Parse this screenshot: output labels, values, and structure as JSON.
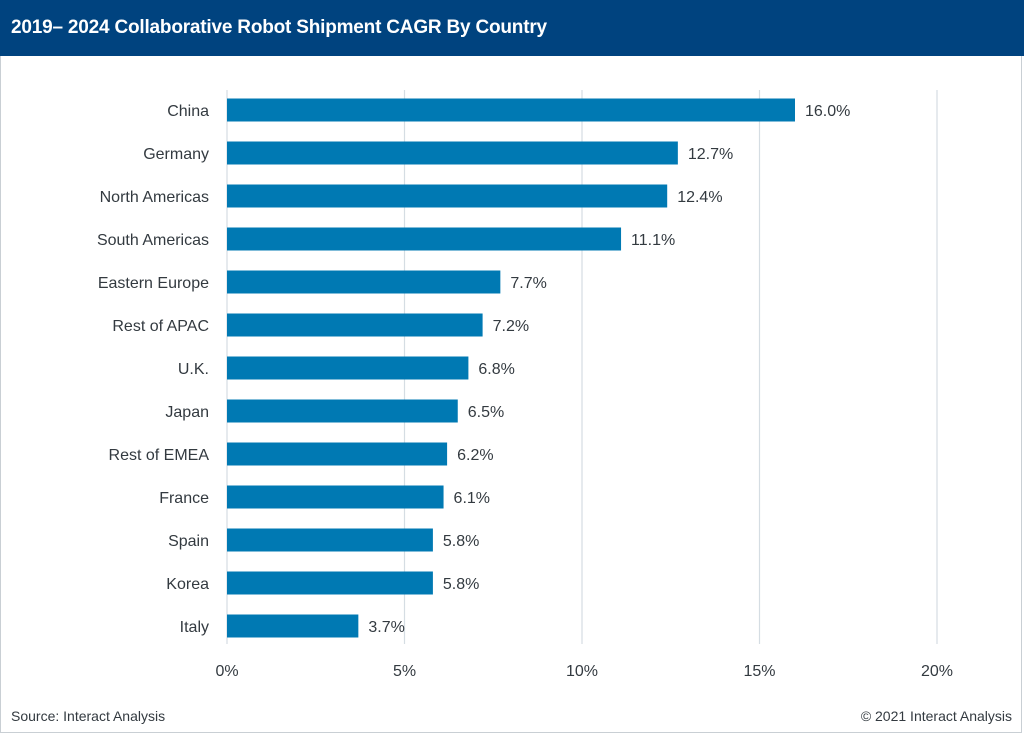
{
  "header": {
    "title": "2019– 2024 Collaborative Robot Shipment CAGR By Country"
  },
  "footer": {
    "source": "Source: Interact Analysis",
    "copyright": "© 2021 Interact Analysis"
  },
  "colors": {
    "header_bg": "#00437f",
    "bar": "#0079b3",
    "gridline": "#d5dde3",
    "text": "#333a40"
  },
  "chart_data": {
    "type": "bar",
    "orientation": "horizontal",
    "title": "2019– 2024 Collaborative Robot Shipment CAGR By Country",
    "xlabel": "",
    "ylabel": "",
    "categories": [
      "China",
      "Germany",
      "North Americas",
      "South Americas",
      "Eastern Europe",
      "Rest of APAC",
      "U.K.",
      "Japan",
      "Rest of EMEA",
      "France",
      "Spain",
      "Korea",
      "Italy"
    ],
    "values": [
      16.0,
      12.7,
      12.4,
      11.1,
      7.7,
      7.2,
      6.8,
      6.5,
      6.2,
      6.1,
      5.8,
      5.8,
      3.7
    ],
    "data_labels": [
      "16.0%",
      "12.7%",
      "12.4%",
      "11.1%",
      "7.7%",
      "7.2%",
      "6.8%",
      "6.5%",
      "6.2%",
      "6.1%",
      "5.8%",
      "5.8%",
      "3.7%"
    ],
    "xlim": [
      0,
      20
    ],
    "xticks": [
      0,
      5,
      10,
      15,
      20
    ],
    "xtick_labels": [
      "0%",
      "5%",
      "10%",
      "15%",
      "20%"
    ],
    "grid": "vertical",
    "legend": "none",
    "unit": "%"
  }
}
